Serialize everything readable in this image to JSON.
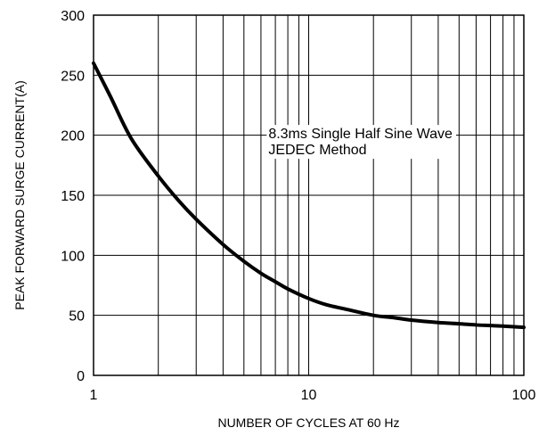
{
  "chart_data": {
    "type": "line",
    "title": "",
    "xlabel": "NUMBER OF CYCLES AT 60 Hz",
    "ylabel": "PEAK FORWARD SURGE CURRENT(A)",
    "xscale": "log",
    "xlim": [
      1,
      100
    ],
    "ylim": [
      0,
      300
    ],
    "x_ticks": [
      {
        "value": 1,
        "label": "1"
      },
      {
        "value": 10,
        "label": "10"
      },
      {
        "value": 100,
        "label": "100"
      }
    ],
    "y_ticks": [
      {
        "value": 0,
        "label": "0"
      },
      {
        "value": 50,
        "label": "50"
      },
      {
        "value": 100,
        "label": "100"
      },
      {
        "value": 150,
        "label": "150"
      },
      {
        "value": 200,
        "label": "200"
      },
      {
        "value": 250,
        "label": "250"
      },
      {
        "value": 300,
        "label": "300"
      }
    ],
    "grid": true,
    "series": [
      {
        "x": [
          1,
          1.2,
          1.5,
          2,
          2.5,
          3,
          4,
          5,
          6,
          7,
          8,
          10,
          12,
          15,
          20,
          25,
          30,
          40,
          50,
          60,
          70,
          80,
          100
        ],
        "y": [
          260,
          232,
          197,
          166,
          145,
          130,
          109,
          95,
          85,
          78,
          72,
          64,
          59,
          55,
          50,
          48,
          46,
          44,
          43,
          42,
          41.5,
          41,
          40
        ],
        "color": "#000000"
      }
    ],
    "annotation": {
      "lines": [
        "8.3ms Single Half Sine Wave",
        "JEDEC Method"
      ],
      "x": 6.5,
      "y": 190
    }
  }
}
